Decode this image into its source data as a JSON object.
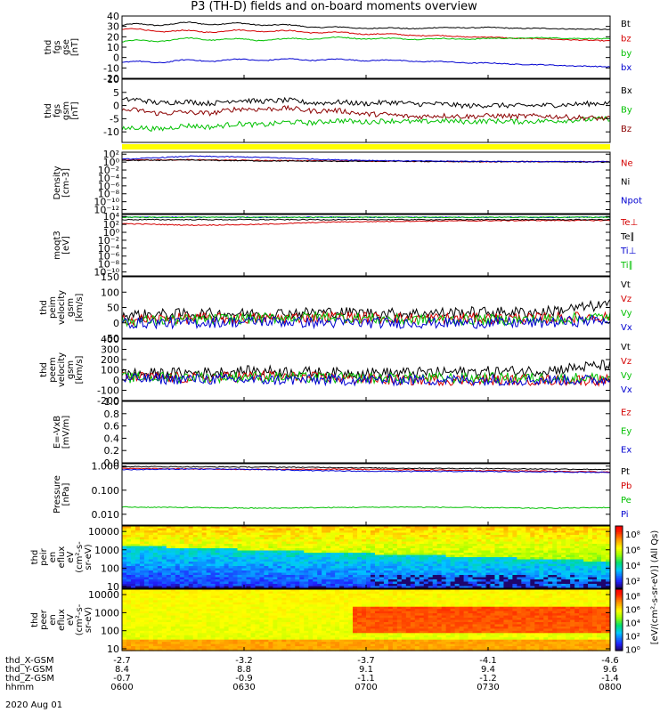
{
  "title": "P3 (TH-D) fields and on-board moments overview",
  "time_axis": {
    "rows": [
      {
        "label": "thd_X-GSM",
        "values": [
          "-2.7",
          "-3.2",
          "-3.7",
          "-4.1",
          "-4.6"
        ]
      },
      {
        "label": "thd_Y-GSM",
        "values": [
          "8.4",
          "8.8",
          "9.1",
          "9.4",
          "9.6"
        ]
      },
      {
        "label": "thd_Z-GSM",
        "values": [
          "-0.7",
          "-0.9",
          "-1.1",
          "-1.2",
          "-1.4"
        ]
      },
      {
        "label": "hhmm",
        "values": [
          "0600",
          "0630",
          "0700",
          "0730",
          "0800"
        ]
      }
    ],
    "date": "2020 Aug 01"
  },
  "chart_data": [
    {
      "type": "line",
      "id": "fgs_gse",
      "ylabel": [
        "thd",
        "fgs",
        "gse",
        "[nT]"
      ],
      "ylim": [
        -20,
        40
      ],
      "ticks": [
        "40",
        "30",
        "20",
        "10",
        "0",
        "-10",
        "-20"
      ],
      "tick_values": [
        40,
        30,
        20,
        10,
        0,
        -10,
        -20
      ],
      "series": [
        {
          "name": "Bt",
          "color": "#000000",
          "values": [
            31,
            33,
            32,
            29,
            28,
            29,
            28,
            27
          ]
        },
        {
          "name": "bz",
          "color": "#d40000",
          "values": [
            27,
            25,
            26,
            24,
            22,
            20,
            18,
            16
          ]
        },
        {
          "name": "by",
          "color": "#00c000",
          "values": [
            15,
            18,
            17,
            19,
            18,
            18,
            19,
            18
          ]
        },
        {
          "name": "bx",
          "color": "#0000d0",
          "values": [
            -5,
            -3,
            -2,
            -2,
            -3,
            -5,
            -7,
            -9
          ]
        }
      ]
    },
    {
      "type": "line",
      "id": "fgs_gsm",
      "ylabel": [
        "thd",
        "fgs",
        "gsm",
        "[nT]"
      ],
      "ylim": [
        -14,
        10
      ],
      "ticks": [
        "10",
        "5",
        "0",
        "-5",
        "-10"
      ],
      "tick_values": [
        10,
        5,
        0,
        -5,
        -10
      ],
      "series": [
        {
          "name": "Bx",
          "color": "#000000",
          "values": [
            2,
            1,
            2,
            1,
            1,
            0,
            0,
            1
          ]
        },
        {
          "name": "By",
          "color": "#00c000",
          "values": [
            -9,
            -8,
            -7,
            -6,
            -6,
            -6,
            -6,
            -5
          ]
        },
        {
          "name": "Bz",
          "color": "#8b0000",
          "values": [
            -2,
            -3,
            -1,
            -2,
            -4,
            -4,
            -4,
            -5
          ]
        }
      ]
    },
    {
      "type": "line",
      "id": "density",
      "ylabel": [
        "Density",
        "[cm-3]"
      ],
      "log": true,
      "ticks": [
        "10²",
        "10⁰",
        "10⁻²",
        "10⁻⁴",
        "10⁻⁶",
        "10⁻⁸",
        "10⁻¹⁰",
        "10⁻¹²"
      ],
      "tick_values": [
        2,
        0,
        -2,
        -4,
        -6,
        -8,
        -10,
        -12
      ],
      "ylim_log": [
        -13,
        2.5
      ],
      "series": [
        {
          "name": "Ne",
          "color": "#d40000",
          "values": [
            0.5,
            0.6,
            0.4,
            0.3,
            0.2,
            0.1,
            0.1,
            0.1
          ]
        },
        {
          "name": "Ni",
          "color": "#000000",
          "values": [
            0.4,
            0.5,
            0.3,
            0.2,
            0.2,
            0.1,
            0.1,
            0.0
          ]
        },
        {
          "name": "Npot",
          "color": "#0000d0",
          "values": [
            0.7,
            1.5,
            1.2,
            0.6,
            0.3,
            0.2,
            0.1,
            0.1
          ]
        }
      ]
    },
    {
      "type": "line",
      "id": "temperature",
      "ylabel": [
        "moqt3",
        "[eV]"
      ],
      "log": true,
      "ticks": [
        "10⁴",
        "10²",
        "10⁰",
        "10⁻²",
        "10⁻⁴",
        "10⁻⁶",
        "10⁻⁸",
        "10⁻¹⁰"
      ],
      "tick_values": [
        4,
        2,
        0,
        -2,
        -4,
        -6,
        -8,
        -10
      ],
      "ylim_log": [
        -11,
        4.5
      ],
      "series": [
        {
          "name": "Te⊥",
          "color": "#d40000",
          "values": [
            2.2,
            1.8,
            2.0,
            2.6,
            2.8,
            2.9,
            3.0,
            3.0
          ]
        },
        {
          "name": "Te∥",
          "color": "#000000",
          "values": [
            3.2,
            3.2,
            3.2,
            3.2,
            3.2,
            3.2,
            3.2,
            3.2
          ]
        },
        {
          "name": "Ti⊥",
          "color": "#0000d0",
          "values": [
            3.8,
            3.8,
            3.8,
            3.8,
            3.8,
            3.8,
            3.8,
            3.8
          ]
        },
        {
          "name": "Ti∥",
          "color": "#00c000",
          "values": [
            3.8,
            3.8,
            3.8,
            3.8,
            3.8,
            3.8,
            3.8,
            3.8
          ]
        }
      ]
    },
    {
      "type": "line",
      "id": "peim_velocity",
      "ylabel": [
        "thd",
        "peim",
        "velocity",
        "gsm",
        "[km/s]"
      ],
      "ylim": [
        -50,
        150
      ],
      "ticks": [
        "150",
        "100",
        "50",
        "0",
        "-50"
      ],
      "tick_values": [
        150,
        100,
        50,
        0,
        -50
      ],
      "series": [
        {
          "name": "Vt",
          "color": "#000000",
          "values": [
            25,
            30,
            30,
            35,
            30,
            35,
            35,
            60
          ]
        },
        {
          "name": "Vz",
          "color": "#d40000",
          "values": [
            10,
            15,
            15,
            20,
            15,
            15,
            15,
            20
          ]
        },
        {
          "name": "Vy",
          "color": "#00c000",
          "values": [
            5,
            10,
            15,
            20,
            10,
            10,
            10,
            20
          ]
        },
        {
          "name": "Vx",
          "color": "#0000d0",
          "values": [
            0,
            0,
            5,
            0,
            0,
            0,
            0,
            10
          ]
        }
      ]
    },
    {
      "type": "line",
      "id": "peem_velocity",
      "ylabel": [
        "thd",
        "peem",
        "velocity",
        "gsm",
        "[km/s]"
      ],
      "ylim": [
        -200,
        400
      ],
      "ticks": [
        "400",
        "300",
        "200",
        "100",
        "0",
        "-100",
        "-200"
      ],
      "tick_values": [
        400,
        300,
        200,
        100,
        0,
        -100,
        -200
      ],
      "series": [
        {
          "name": "Vt",
          "color": "#000000",
          "values": [
            60,
            70,
            90,
            70,
            70,
            80,
            90,
            150
          ]
        },
        {
          "name": "Vz",
          "color": "#d40000",
          "values": [
            30,
            20,
            40,
            20,
            0,
            0,
            0,
            0
          ]
        },
        {
          "name": "Vy",
          "color": "#00c000",
          "values": [
            20,
            30,
            30,
            20,
            20,
            20,
            20,
            20
          ]
        },
        {
          "name": "Vx",
          "color": "#0000d0",
          "values": [
            10,
            10,
            0,
            0,
            0,
            0,
            0,
            0
          ]
        }
      ]
    },
    {
      "type": "line",
      "id": "efield",
      "ylabel": [
        "E=-VxB",
        "[mV/m]"
      ],
      "ylim": [
        0,
        1
      ],
      "ticks": [
        "1.0",
        "0.8",
        "0.6",
        "0.4",
        "0.2",
        "0.0"
      ],
      "tick_values": [
        1.0,
        0.8,
        0.6,
        0.4,
        0.2,
        0.0
      ],
      "series": [
        {
          "name": "Ez",
          "color": "#d40000",
          "values": []
        },
        {
          "name": "Ey",
          "color": "#00c000",
          "values": []
        },
        {
          "name": "Ex",
          "color": "#0000d0",
          "values": []
        }
      ]
    },
    {
      "type": "line",
      "id": "pressure",
      "ylabel": [
        "Pressure",
        "[nPa]"
      ],
      "log": true,
      "ticks": [
        "1.000",
        "0.100",
        "0.010"
      ],
      "tick_values": [
        0,
        -1,
        -2
      ],
      "ylim_log": [
        -2.45,
        0.1
      ],
      "series": [
        {
          "name": "Pt",
          "color": "#000000",
          "values": [
            -0.02,
            -0.03,
            -0.04,
            -0.06,
            -0.09,
            -0.1,
            -0.12,
            -0.14
          ]
        },
        {
          "name": "Pb",
          "color": "#d40000",
          "values": [
            -0.1,
            -0.12,
            -0.14,
            -0.13,
            -0.15,
            -0.18,
            -0.2,
            -0.25
          ]
        },
        {
          "name": "Pe",
          "color": "#00c000",
          "values": [
            -1.7,
            -1.72,
            -1.75,
            -1.72,
            -1.7,
            -1.72,
            -1.75,
            -1.72
          ]
        },
        {
          "name": "Pi",
          "color": "#0000d0",
          "values": [
            -0.15,
            -0.12,
            -0.14,
            -0.2,
            -0.22,
            -0.22,
            -0.24,
            -0.26
          ]
        }
      ]
    },
    {
      "type": "heatmap",
      "id": "peir_spectrogram",
      "ylabel": [
        "thd",
        "peir",
        "en",
        "eflux",
        "eV",
        "(cm²-s-",
        "sr-eV)"
      ],
      "ticks": [
        "10000",
        "1000",
        "100",
        "10"
      ],
      "tick_values": [
        4,
        3,
        2,
        1
      ]
    },
    {
      "type": "heatmap",
      "id": "peer_spectrogram",
      "ylabel": [
        "thd",
        "peer",
        "en",
        "eflux",
        "eV",
        "(cm²-s-",
        "sr-eV)"
      ],
      "ticks": [
        "10000",
        "1000",
        "100",
        "10"
      ],
      "tick_values": [
        4,
        3,
        2,
        1
      ]
    }
  ],
  "colorbars": [
    {
      "ticks": [
        "10⁸",
        "10⁶",
        "10⁴",
        "10²"
      ],
      "tick_values": [
        8,
        6,
        4,
        2
      ],
      "range": [
        1,
        9
      ]
    },
    {
      "ticks": [
        "10⁸",
        "10⁶",
        "10⁴",
        "10²",
        "10⁰"
      ],
      "tick_values": [
        8,
        6,
        4,
        2,
        0
      ],
      "range": [
        -0.2,
        9
      ]
    }
  ],
  "colorbar_label": "[eV/(cm²-s-sr-eV)] (All Qs)",
  "colors": {
    "quality_bar": "#ffff00"
  }
}
